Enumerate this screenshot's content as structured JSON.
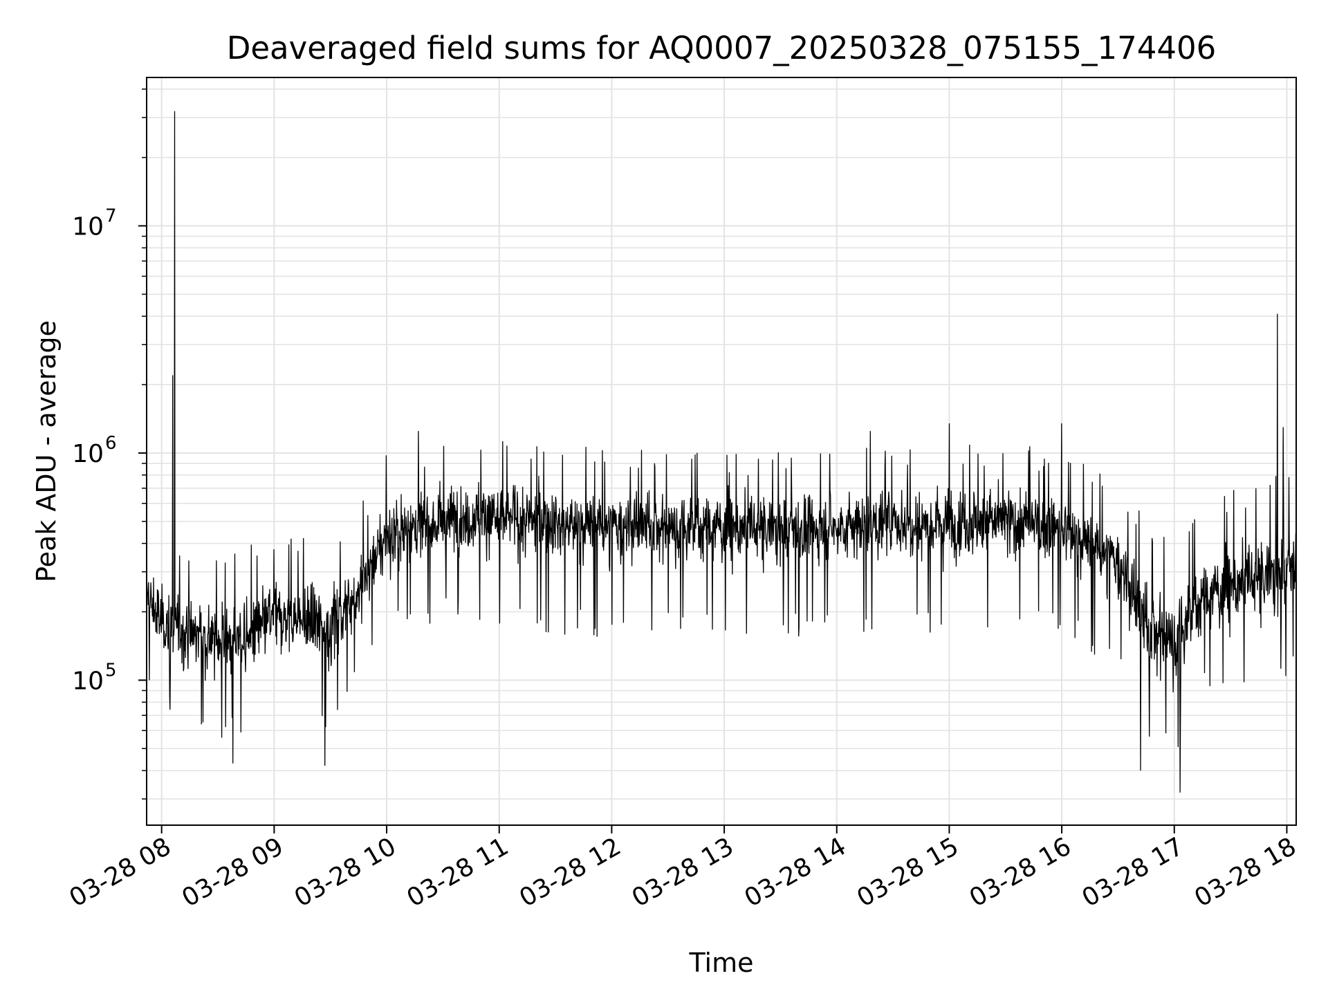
{
  "chart_data": {
    "type": "line",
    "title": "Deaveraged field sums for AQ0007_20250328_075155_174406",
    "xlabel": "Time",
    "ylabel": "Peak ADU - average",
    "yscale": "log",
    "ylim": [
      23000,
      45000000
    ],
    "xlim": [
      "2025-03-28 07:52",
      "2025-03-28 18:05"
    ],
    "x_ticks": [
      "03-28 08",
      "03-28 09",
      "03-28 10",
      "03-28 11",
      "03-28 12",
      "03-28 13",
      "03-28 14",
      "03-28 15",
      "03-28 16",
      "03-28 17",
      "03-28 18"
    ],
    "y_ticks": [
      {
        "base": "10",
        "exp": "5",
        "value": 100000
      },
      {
        "base": "10",
        "exp": "6",
        "value": 1000000
      },
      {
        "base": "10",
        "exp": "7",
        "value": 10000000
      }
    ],
    "grid": true,
    "line_color": "#000000",
    "series": [
      {
        "description": "approximate local envelope of the noisy trace",
        "points": [
          {
            "t": "07:52",
            "low": 110000,
            "mid": 230000,
            "high": 430000
          },
          {
            "t": "08:00",
            "low": 100000,
            "mid": 180000,
            "high": 400000
          },
          {
            "t": "08:15",
            "low": 80000,
            "mid": 160000,
            "high": 330000
          },
          {
            "t": "08:30",
            "low": 70000,
            "mid": 150000,
            "high": 320000
          },
          {
            "t": "08:45",
            "low": 70000,
            "mid": 150000,
            "high": 310000
          },
          {
            "t": "09:00",
            "low": 90000,
            "mid": 190000,
            "high": 350000
          },
          {
            "t": "09:15",
            "low": 85000,
            "mid": 180000,
            "high": 350000
          },
          {
            "t": "09:30",
            "low": 80000,
            "mid": 170000,
            "high": 360000
          },
          {
            "t": "09:45",
            "low": 120000,
            "mid": 250000,
            "high": 450000
          },
          {
            "t": "10:00",
            "low": 200000,
            "mid": 430000,
            "high": 750000
          },
          {
            "t": "10:30",
            "low": 230000,
            "mid": 520000,
            "high": 900000
          },
          {
            "t": "11:00",
            "low": 230000,
            "mid": 520000,
            "high": 880000
          },
          {
            "t": "11:30",
            "low": 210000,
            "mid": 490000,
            "high": 860000
          },
          {
            "t": "12:00",
            "low": 200000,
            "mid": 470000,
            "high": 820000
          },
          {
            "t": "12:30",
            "low": 200000,
            "mid": 470000,
            "high": 820000
          },
          {
            "t": "13:00",
            "low": 200000,
            "mid": 470000,
            "high": 800000
          },
          {
            "t": "13:30",
            "low": 200000,
            "mid": 460000,
            "high": 800000
          },
          {
            "t": "14:00",
            "low": 200000,
            "mid": 470000,
            "high": 820000
          },
          {
            "t": "14:30",
            "low": 210000,
            "mid": 490000,
            "high": 850000
          },
          {
            "t": "15:00",
            "low": 210000,
            "mid": 500000,
            "high": 870000
          },
          {
            "t": "15:30",
            "low": 220000,
            "mid": 500000,
            "high": 880000
          },
          {
            "t": "16:00",
            "low": 200000,
            "mid": 460000,
            "high": 780000
          },
          {
            "t": "16:30",
            "low": 150000,
            "mid": 330000,
            "high": 600000
          },
          {
            "t": "16:45",
            "low": 70000,
            "mid": 170000,
            "high": 400000
          },
          {
            "t": "17:00",
            "low": 55000,
            "mid": 150000,
            "high": 330000
          },
          {
            "t": "17:15",
            "low": 110000,
            "mid": 230000,
            "high": 450000
          },
          {
            "t": "17:30",
            "low": 120000,
            "mid": 260000,
            "high": 550000
          },
          {
            "t": "18:00",
            "low": 130000,
            "mid": 300000,
            "high": 650000
          },
          {
            "t": "18:05",
            "low": 130000,
            "mid": 320000,
            "high": 700000
          }
        ]
      }
    ],
    "spikes": [
      {
        "t": "08:07",
        "value": 32000000
      },
      {
        "t": "08:06",
        "value": 2200000
      },
      {
        "t": "17:55",
        "value": 4100000
      },
      {
        "t": "17:58",
        "value": 1300000
      },
      {
        "t": "15:00",
        "value": 1350000
      },
      {
        "t": "16:00",
        "value": 1350000
      },
      {
        "t": "10:17",
        "value": 1250000
      },
      {
        "t": "14:18",
        "value": 1250000
      },
      {
        "t": "17:03",
        "value": 32000
      },
      {
        "t": "08:38",
        "value": 43000
      },
      {
        "t": "09:27",
        "value": 42000
      },
      {
        "t": "16:42",
        "value": 40000
      }
    ]
  }
}
